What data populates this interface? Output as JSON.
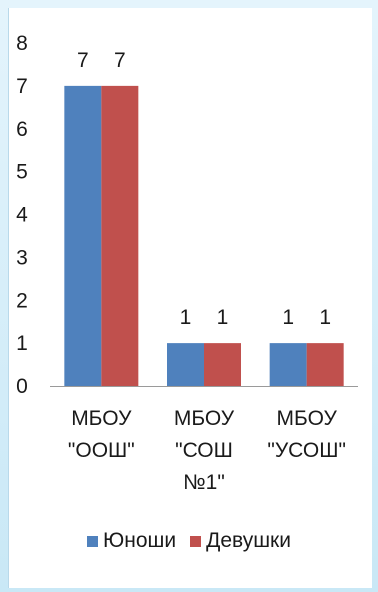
{
  "chart_data": {
    "type": "bar",
    "categories": [
      [
        "МБОУ",
        "\"ООШ\""
      ],
      [
        "МБОУ",
        "\"СОШ",
        "№1\""
      ],
      [
        "МБОУ",
        "\"УСОШ\""
      ]
    ],
    "series": [
      {
        "name": "Юноши",
        "values": [
          7,
          1,
          1
        ],
        "color": "#4f81bd"
      },
      {
        "name": "Девушки",
        "values": [
          7,
          1,
          1
        ],
        "color": "#c0504d"
      }
    ],
    "ylim": [
      0,
      8
    ],
    "yticks": [
      "0",
      "1",
      "2",
      "3",
      "4",
      "5",
      "6",
      "7",
      "8"
    ],
    "grid": false,
    "legend_position": "bottom",
    "data_labels": true
  }
}
